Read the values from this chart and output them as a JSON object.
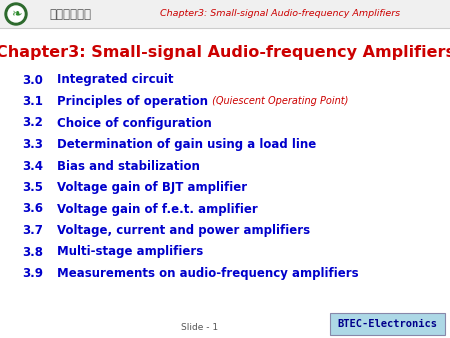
{
  "bg_color": "#ffffff",
  "header_text": "Chapter3: Small-signal Audio-frequency Amplifiers",
  "header_text_color": "#cc0000",
  "header_logo_text": "广东教育学院",
  "title": "Chapter3: Small-signal Audio-frequency Amplifiers",
  "title_color": "#cc0000",
  "items": [
    {
      "num": "3.0",
      "text": "Integrated circuit",
      "annotation": ""
    },
    {
      "num": "3.1",
      "text": "Principles of operation",
      "annotation": " (Quiescent Operating Point)"
    },
    {
      "num": "3.2",
      "text": "Choice of configuration",
      "annotation": ""
    },
    {
      "num": "3.3",
      "text": "Determination of gain using a load line",
      "annotation": ""
    },
    {
      "num": "3.4",
      "text": "Bias and stabilization",
      "annotation": ""
    },
    {
      "num": "3.5",
      "text": "Voltage gain of BJT amplifier",
      "annotation": ""
    },
    {
      "num": "3.6",
      "text": "Voltage gain of f.e.t. amplifier",
      "annotation": ""
    },
    {
      "num": "3.7",
      "text": "Voltage, current and power amplifiers",
      "annotation": ""
    },
    {
      "num": "3.8",
      "text": "Multi-stage amplifiers",
      "annotation": ""
    },
    {
      "num": "3.9",
      "text": "Measurements on audio-frequency amplifiers",
      "annotation": ""
    }
  ],
  "item_num_color": "#0000cc",
  "item_text_color": "#0000cc",
  "annotation_color": "#cc0000",
  "footer_text": "Slide - 1",
  "footer_text_color": "#555555",
  "btec_box_color": "#add8e6",
  "btec_text": "BTEC-Electronics",
  "btec_text_color": "#00008b",
  "header_bar_color": "#f0f0f0",
  "header_line_color": "#cccccc",
  "logo_outer_color": "#2d6a2d",
  "logo_inner_color": "#ffffff",
  "logo_leaf_color": "#2d8a2d",
  "chinese_text_color": "#555555"
}
